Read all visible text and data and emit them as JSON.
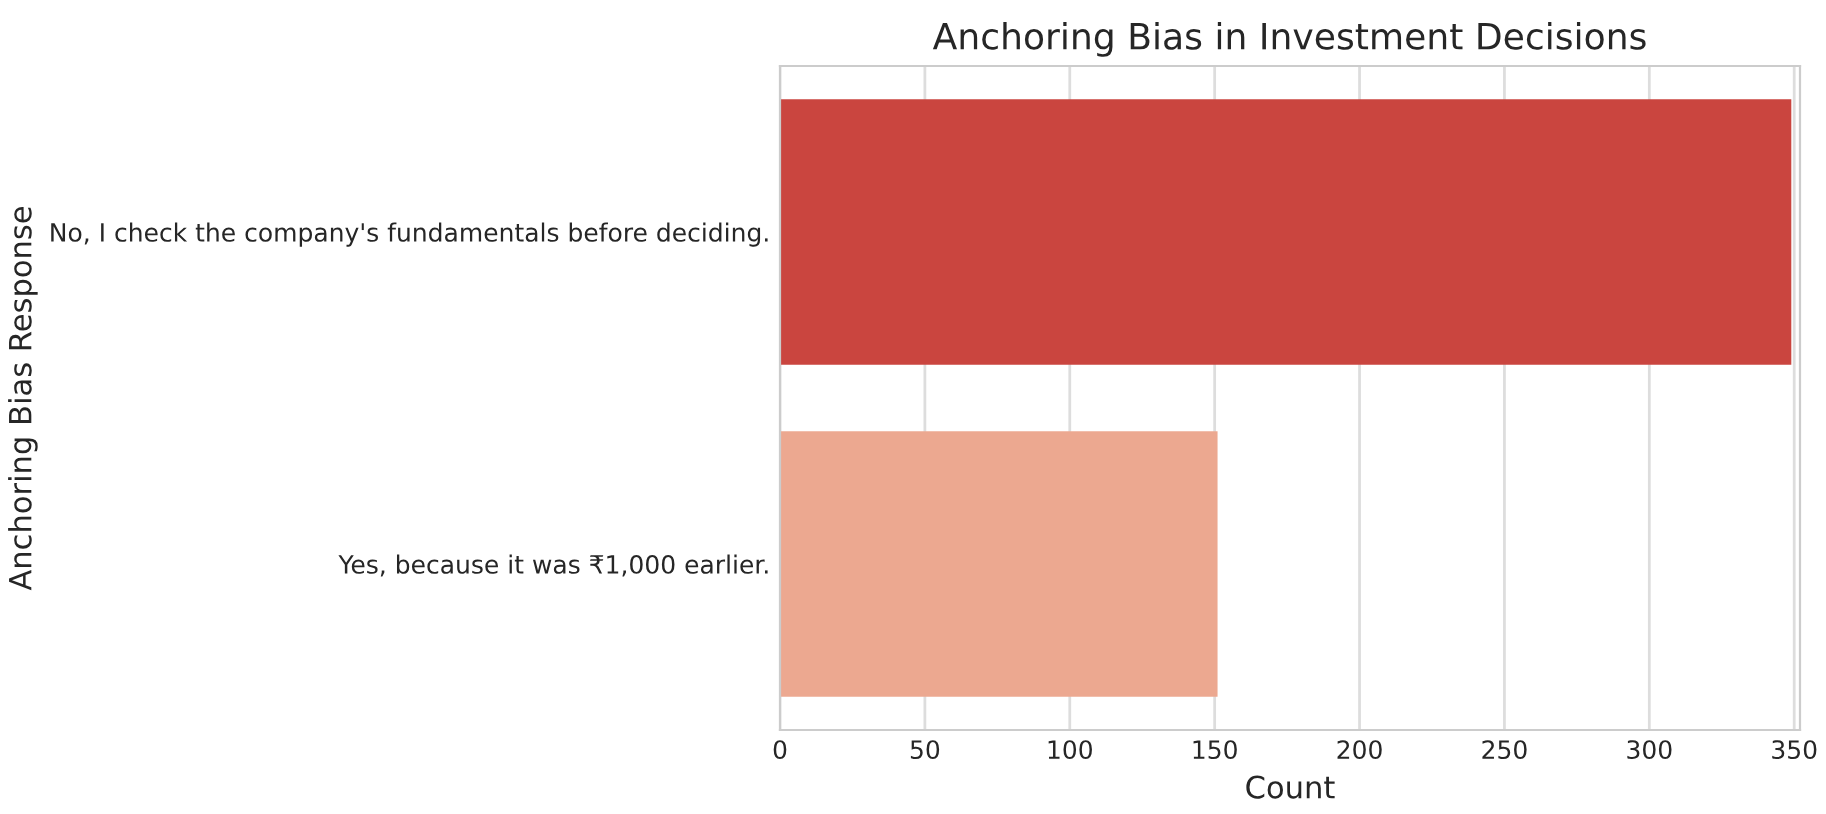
{
  "chart_data": {
    "type": "bar",
    "orientation": "horizontal",
    "title": "Anchoring Bias in Investment Decisions",
    "xlabel": "Count",
    "ylabel": "Anchoring Bias Response",
    "categories": [
      "No, I check the company's fundamentals before deciding.",
      "Yes, because it was ₹1,000 earlier."
    ],
    "values": [
      349,
      151
    ],
    "colors": [
      "#ca453f",
      "#eca890"
    ],
    "xlim": [
      0,
      352
    ],
    "xticks": [
      0,
      50,
      100,
      150,
      200,
      250,
      300,
      350
    ],
    "grid": "x"
  }
}
